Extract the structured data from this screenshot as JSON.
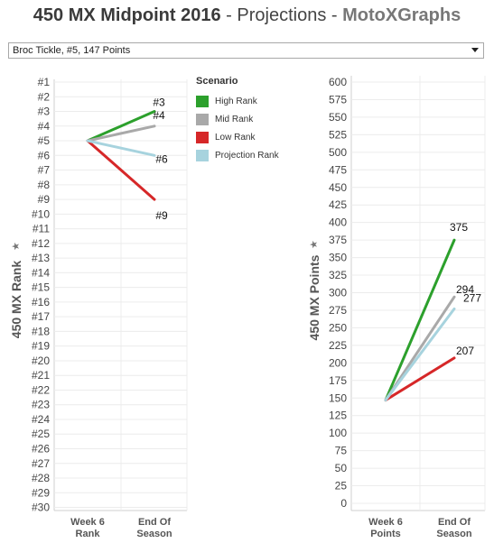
{
  "header": {
    "title_main": "450 MX Midpoint 2016",
    "title_sep1": " - ",
    "title_proj": "Projections",
    "title_sep2": " - ",
    "title_brand": "MotoXGraphs"
  },
  "rider_select": {
    "value": "Broc Tickle, #5, 147 Points"
  },
  "legend": {
    "title": "Scenario",
    "items": [
      {
        "label": "High Rank",
        "color": "#2ca02c"
      },
      {
        "label": "Mid Rank",
        "color": "#a9a9a9"
      },
      {
        "label": "Low Rank",
        "color": "#d62728"
      },
      {
        "label": "Projection Rank",
        "color": "#a7d3de"
      }
    ]
  },
  "chart_data": [
    {
      "type": "line",
      "ylabel": "450 MX Rank",
      "categories": [
        "Week 6\nRank",
        "End Of\nSeason"
      ],
      "yticks": [
        "#1",
        "#2",
        "#3",
        "#4",
        "#5",
        "#6",
        "#7",
        "#8",
        "#9",
        "#10",
        "#11",
        "#12",
        "#13",
        "#14",
        "#15",
        "#16",
        "#17",
        "#18",
        "#19",
        "#20",
        "#21",
        "#22",
        "#23",
        "#24",
        "#25",
        "#26",
        "#27",
        "#28",
        "#29",
        "#30"
      ],
      "ylim": [
        1,
        30
      ],
      "reversed": true,
      "series": [
        {
          "name": "High Rank",
          "color": "#2ca02c",
          "values": [
            5,
            3
          ],
          "end_label": "#3"
        },
        {
          "name": "Mid Rank",
          "color": "#a9a9a9",
          "values": [
            5,
            4
          ],
          "end_label": "#4"
        },
        {
          "name": "Low Rank",
          "color": "#d62728",
          "values": [
            5,
            9
          ],
          "end_label": "#9"
        },
        {
          "name": "Projection Rank",
          "color": "#a7d3de",
          "values": [
            5,
            6
          ],
          "end_label": "#6"
        }
      ]
    },
    {
      "type": "line",
      "ylabel": "450 MX Points",
      "categories": [
        "Week 6\nPoints",
        "End Of\nSeason"
      ],
      "yticks": [
        "0",
        "25",
        "50",
        "75",
        "100",
        "125",
        "150",
        "175",
        "200",
        "225",
        "250",
        "275",
        "300",
        "325",
        "350",
        "375",
        "400",
        "425",
        "450",
        "475",
        "500",
        "525",
        "550",
        "575",
        "600"
      ],
      "ylim": [
        0,
        600
      ],
      "series": [
        {
          "name": "High Rank",
          "color": "#2ca02c",
          "values": [
            147,
            375
          ],
          "end_label": "375"
        },
        {
          "name": "Mid Rank",
          "color": "#a9a9a9",
          "values": [
            147,
            294
          ],
          "end_label": "294"
        },
        {
          "name": "Low Rank",
          "color": "#d62728",
          "values": [
            147,
            207
          ],
          "end_label": "207"
        },
        {
          "name": "Projection Rank",
          "color": "#a7d3de",
          "values": [
            147,
            277
          ],
          "end_label": "277"
        }
      ]
    }
  ]
}
